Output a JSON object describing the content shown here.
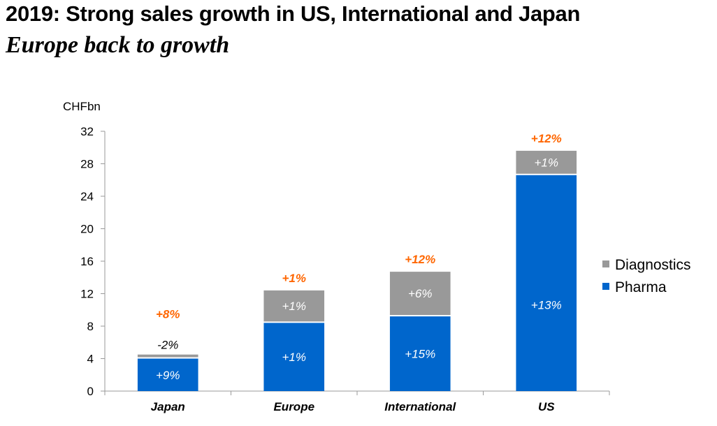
{
  "header": {
    "title": "2019: Strong sales growth in US, International and Japan",
    "subtitle": "Europe back to growth"
  },
  "colors": {
    "pharma": "#0066CC",
    "diagnostics": "#999999",
    "total_growth": "#FF6600",
    "axis": "#999999"
  },
  "chart_data": {
    "type": "bar",
    "stacked": true,
    "title": "2019: Strong sales growth in US, International and Japan",
    "subtitle": "Europe back to growth",
    "ylabel": "CHFbn",
    "xlabel": "",
    "ylim": [
      0,
      32
    ],
    "yticks": [
      0,
      4,
      8,
      12,
      16,
      20,
      24,
      28,
      32
    ],
    "ytick_labels": [
      "0",
      "4",
      "8",
      "12",
      "16",
      "20",
      "24",
      "28",
      "32"
    ],
    "grid": false,
    "legend_position": "right",
    "categories": [
      "Japan",
      "Europe",
      "International",
      "US"
    ],
    "series": [
      {
        "name": "Pharma",
        "color": "#0066CC",
        "values": [
          4.0,
          8.4,
          9.2,
          26.6
        ],
        "growth_labels": [
          "+9%",
          "+1%",
          "+15%",
          "+13%"
        ]
      },
      {
        "name": "Diagnostics",
        "color": "#999999",
        "values": [
          0.5,
          4.0,
          5.5,
          3.0
        ],
        "growth_labels": [
          "-2%",
          "+1%",
          "+6%",
          "+1%"
        ]
      }
    ],
    "totals": [
      4.5,
      12.4,
      14.7,
      29.6
    ],
    "total_growth_labels": [
      "+8%",
      "+1%",
      "+12%",
      "+12%"
    ],
    "legend": [
      "Diagnostics",
      "Pharma"
    ]
  }
}
